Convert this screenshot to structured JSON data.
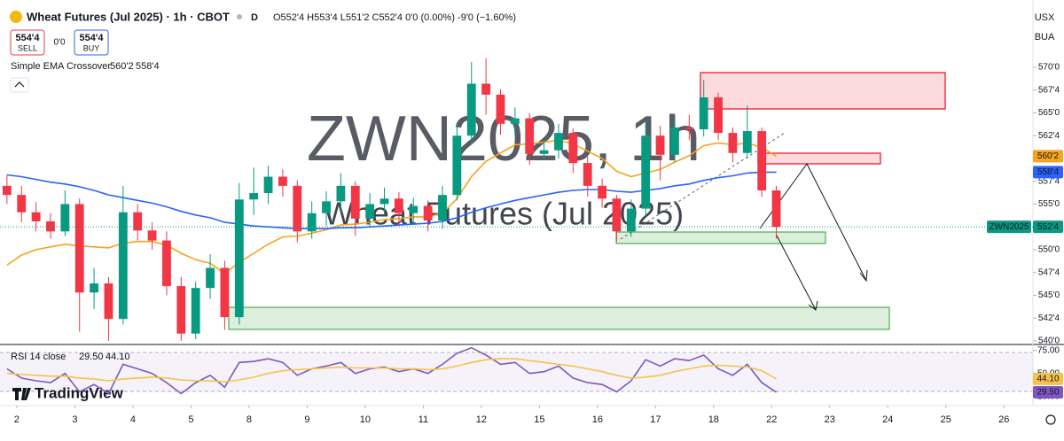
{
  "header": {
    "title": "Wheat Futures (Jul 2025) · 1h · CBOT",
    "badge": "D",
    "quote": "O552'4 H553'4 L551'2 C552'4 0'0 (0.00%) -9'0 (−1.60%)"
  },
  "trade": {
    "sell_price": "554'4",
    "sell": "SELL",
    "spread": "0'0",
    "buy_price": "554'4",
    "buy": "BUY"
  },
  "indicator": {
    "name": "Simple EMA Crossover"
  },
  "currency": "USX",
  "unit": "BUA",
  "watermark": {
    "symbol": "ZWN2025, 1h",
    "name": "Wheat Futures (Jul 2025)"
  },
  "logo": "TradingView",
  "chart_data": [
    {
      "type": "candlestick",
      "xlim": [
        -0.29,
        17.5
      ],
      "xticks": [
        {
          "value": 0,
          "label": "2"
        },
        {
          "value": 1,
          "label": "3"
        },
        {
          "value": 2,
          "label": "4"
        },
        {
          "value": 3,
          "label": "5"
        },
        {
          "value": 4,
          "label": "8"
        },
        {
          "value": 5,
          "label": "9"
        },
        {
          "value": 6,
          "label": "10"
        },
        {
          "value": 7,
          "label": "11"
        },
        {
          "value": 8,
          "label": "12"
        },
        {
          "value": 9,
          "label": "15"
        },
        {
          "value": 10,
          "label": "16"
        },
        {
          "value": 11,
          "label": "17"
        },
        {
          "value": 12,
          "label": "18"
        },
        {
          "value": 13,
          "label": "22"
        },
        {
          "value": 14,
          "label": "23"
        },
        {
          "value": 15,
          "label": "24"
        },
        {
          "value": 16,
          "label": "25"
        },
        {
          "value": 17,
          "label": "26"
        }
      ],
      "ylim": [
        539.7,
        576.6
      ],
      "yticks": [
        {
          "value": 570,
          "label": "570'0"
        },
        {
          "value": 567.5,
          "label": "567'4"
        },
        {
          "value": 565,
          "label": "565'0"
        },
        {
          "value": 562.5,
          "label": "562'4"
        },
        {
          "value": 557.5,
          "label": "557'4"
        },
        {
          "value": 555,
          "label": "555'0"
        },
        {
          "value": 550,
          "label": "550'0"
        },
        {
          "value": 547.5,
          "label": "547'4"
        },
        {
          "value": 545,
          "label": "545'0"
        },
        {
          "value": 542.5,
          "label": "542'4"
        },
        {
          "value": 540,
          "label": "540'0"
        }
      ],
      "up_color": "#089981",
      "down_color": "#f23645",
      "x": [
        -0.17,
        0.08,
        0.33,
        0.58,
        0.83,
        1.08,
        1.33,
        1.58,
        1.83,
        2.08,
        2.33,
        2.58,
        2.83,
        3.08,
        3.33,
        3.58,
        3.83,
        4.08,
        4.33,
        4.58,
        4.83,
        5.08,
        5.33,
        5.58,
        5.83,
        6.08,
        6.33,
        6.58,
        6.83,
        7.08,
        7.33,
        7.58,
        7.83,
        8.08,
        8.33,
        8.58,
        8.83,
        9.08,
        9.33,
        9.58,
        9.83,
        10.08,
        10.33,
        10.58,
        10.83,
        11.08,
        11.33,
        11.58,
        11.83,
        12.08,
        12.33,
        12.58,
        12.83,
        13.08
      ],
      "open": [
        557.0,
        556.0,
        554.1,
        553.1,
        552.0,
        555.0,
        545.3,
        546.3,
        542.4,
        554.1,
        552.1,
        551.0,
        546.0,
        540.8,
        545.8,
        548.0,
        542.6,
        555.5,
        556.2,
        558.0,
        557.0,
        552.0,
        554.0,
        555.3,
        557.0,
        553.4,
        555.0,
        555.6,
        554.0,
        554.8,
        553.2,
        556.0,
        562.5,
        568.2,
        567.0,
        563.8,
        564.4,
        560.5,
        560.9,
        562.8,
        559.5,
        557.0,
        555.6,
        552.0,
        554.5,
        562.5,
        560.4,
        563.4,
        563.2,
        566.7,
        562.8,
        560.6,
        563.0,
        556.5
      ],
      "high": [
        558.2,
        557.0,
        555.2,
        554.0,
        556.5,
        555.6,
        548.0,
        547.0,
        557.0,
        555.0,
        553.0,
        552.0,
        547.0,
        546.5,
        549.5,
        548.8,
        557.3,
        559.0,
        559.2,
        558.8,
        557.6,
        555.3,
        556.4,
        558.4,
        557.5,
        556.2,
        556.8,
        556.3,
        555.7,
        555.4,
        557.0,
        563.8,
        570.6,
        571.0,
        567.6,
        565.6,
        565.0,
        562.0,
        563.8,
        563.3,
        560.2,
        557.8,
        556.0,
        555.5,
        564.2,
        563.6,
        564.6,
        564.8,
        568.6,
        567.2,
        563.4,
        565.8,
        563.4,
        557.0
      ],
      "low": [
        555.0,
        553.0,
        552.0,
        551.2,
        551.5,
        541.0,
        543.5,
        540.0,
        541.8,
        551.0,
        550.0,
        545.0,
        540.0,
        540.2,
        544.6,
        541.2,
        541.8,
        553.8,
        555.0,
        555.8,
        550.8,
        551.2,
        552.6,
        554.0,
        551.5,
        552.4,
        553.8,
        552.6,
        552.8,
        552.0,
        552.3,
        555.4,
        561.5,
        564.8,
        562.6,
        562.5,
        559.3,
        559.8,
        560.0,
        558.4,
        555.8,
        554.6,
        550.9,
        551.4,
        553.6,
        557.6,
        559.6,
        562.0,
        562.4,
        562.0,
        559.6,
        560.0,
        555.8,
        551.2
      ],
      "close": [
        556.0,
        554.1,
        553.1,
        552.0,
        555.0,
        545.3,
        546.3,
        542.4,
        554.1,
        552.1,
        551.0,
        546.0,
        540.8,
        545.8,
        548.0,
        542.6,
        555.5,
        556.2,
        558.0,
        557.0,
        552.0,
        554.0,
        555.3,
        557.0,
        553.4,
        555.0,
        555.6,
        554.0,
        554.8,
        553.2,
        556.0,
        562.5,
        568.2,
        567.0,
        563.8,
        564.4,
        560.5,
        560.9,
        562.8,
        559.5,
        557.0,
        555.6,
        552.0,
        554.5,
        562.5,
        560.4,
        563.4,
        563.2,
        566.7,
        562.8,
        560.6,
        563.0,
        556.5,
        552.5
      ],
      "series": [
        {
          "color": "#f7a31c",
          "last_label": "560'2",
          "values": [
            548.3,
            549.4,
            550.0,
            550.3,
            550.6,
            550.4,
            550.3,
            550.2,
            550.7,
            550.9,
            550.9,
            550.5,
            549.6,
            548.9,
            548.5,
            547.4,
            548.6,
            549.6,
            550.6,
            551.4,
            551.5,
            551.8,
            552.2,
            552.7,
            552.8,
            553.0,
            553.3,
            553.4,
            553.6,
            553.6,
            554.0,
            555.6,
            558.0,
            559.7,
            560.6,
            561.5,
            561.6,
            561.8,
            562.0,
            561.6,
            560.8,
            560.0,
            558.6,
            558.0,
            558.4,
            558.8,
            559.6,
            560.3,
            561.4,
            561.7,
            561.5,
            561.7,
            561.2,
            560.25
          ]
        },
        {
          "color": "#2962ff",
          "last_label": "558'4",
          "values": [
            558.2,
            558.0,
            557.7,
            557.4,
            557.2,
            556.9,
            556.5,
            556.0,
            555.7,
            555.4,
            555.1,
            554.7,
            554.2,
            553.8,
            553.5,
            553.0,
            552.8,
            552.6,
            552.5,
            552.4,
            552.3,
            552.3,
            552.3,
            552.4,
            552.4,
            552.5,
            552.6,
            552.7,
            552.8,
            552.9,
            553.1,
            553.5,
            554.1,
            554.6,
            555.0,
            555.4,
            555.7,
            556.0,
            556.3,
            556.5,
            556.6,
            556.6,
            556.4,
            556.3,
            556.5,
            556.7,
            557.0,
            557.2,
            557.6,
            557.9,
            558.1,
            558.4,
            558.5,
            558.5
          ]
        }
      ],
      "last": {
        "symbol": "ZWN2025",
        "value": 552.5,
        "label": "552'4",
        "color": "#089981"
      }
    },
    {
      "type": "line",
      "title": "RSI 14 close",
      "ylim": [
        20.8,
        80.6
      ],
      "yticks": [
        {
          "value": 75,
          "label": "75.00"
        },
        {
          "value": 50,
          "label": "50.00"
        },
        {
          "value": 25,
          "label": "25.00"
        }
      ],
      "series": [
        {
          "color": "#7e57c2",
          "last_label": "29.50",
          "values": [
            55,
            45,
            42,
            40,
            50,
            30,
            38,
            28,
            60,
            55,
            50,
            40,
            28,
            40,
            48,
            35,
            62,
            63,
            66,
            62,
            48,
            55,
            58,
            62,
            50,
            55,
            57,
            52,
            55,
            50,
            60,
            72,
            78,
            70,
            60,
            62,
            50,
            52,
            58,
            45,
            40,
            38,
            30,
            42,
            65,
            58,
            66,
            64,
            70,
            55,
            48,
            60,
            40,
            29.5
          ]
        },
        {
          "color": "#f5c24a",
          "last_label": "44.10",
          "values": [
            50,
            49,
            48,
            47,
            47,
            45,
            44,
            42,
            44,
            45,
            46,
            45,
            43,
            42,
            42,
            41,
            43,
            46,
            50,
            53,
            54,
            55,
            56,
            57,
            56,
            56,
            56,
            55,
            55,
            54,
            55,
            58,
            62,
            65,
            66,
            66,
            64,
            62,
            60,
            58,
            55,
            52,
            48,
            45,
            46,
            48,
            52,
            55,
            58,
            59,
            58,
            57,
            53,
            44.1
          ]
        }
      ]
    }
  ]
}
